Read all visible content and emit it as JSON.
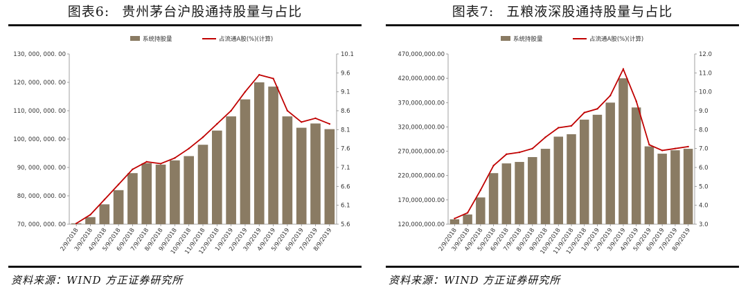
{
  "charts": [
    {
      "id": "left",
      "fig_label": "图表6:",
      "fig_title": "贵州茅台沪股通持股量与占比",
      "source": "资料来源：WIND 方正证券研究所",
      "legend": {
        "bars": "系统持股量",
        "line": "占流通A股(%)(计算)"
      },
      "colors": {
        "bar": "#8a7b63",
        "line": "#c00000"
      }
    },
    {
      "id": "right",
      "fig_label": "图表7:",
      "fig_title": "五粮液深股通持股量与占比",
      "source": "资料来源：WIND 方正证券研究所",
      "legend": {
        "bars": "系统持股量",
        "line": "占流通A股(%)(计算)"
      },
      "colors": {
        "bar": "#8a7b63",
        "line": "#c00000"
      }
    }
  ],
  "chart_data": [
    {
      "type": "bar",
      "combo": "bar+line",
      "x_ticks": [
        "2/9/2018",
        "3/9/2018",
        "4/9/2018",
        "5/9/2018",
        "6/9/2018",
        "7/9/2018",
        "8/9/2018",
        "9/9/2018",
        "10/9/2018",
        "11/9/2018",
        "12/9/2018",
        "1/9/2019",
        "2/9/2019",
        "3/9/2019",
        "4/9/2019",
        "5/9/2019",
        "6/9/2019",
        "7/9/2019",
        "8/9/2019"
      ],
      "y_left": {
        "range": [
          70000000,
          130000000
        ],
        "ticks": [
          "70, 000, 000. 00",
          "80, 000, 000. 00",
          "90, 000, 000. 00",
          "100, 000, 000. 00",
          "110, 000, 000. 00",
          "120, 000, 000. 00",
          "130, 000, 000. 00"
        ]
      },
      "y_right": {
        "range": [
          5.6,
          10.1
        ],
        "ticks": [
          "5.6",
          "6.1",
          "6.6",
          "7.1",
          "7.6",
          "8.1",
          "8.6",
          "9.1",
          "9.6",
          "10.1"
        ]
      },
      "x": [
        "2018-02",
        "2018-03",
        "2018-04",
        "2018-05",
        "2018-06",
        "2018-07",
        "2018-08",
        "2018-09",
        "2018-10",
        "2018-11",
        "2018-12",
        "2019-01",
        "2019-02",
        "2019-03",
        "2019-04",
        "2019-05",
        "2019-06",
        "2019-07",
        "2019-08"
      ],
      "series": [
        {
          "name": "系统持股量",
          "kind": "bar",
          "values": [
            70300000,
            72500000,
            77000000,
            82000000,
            88000000,
            91500000,
            91000000,
            92500000,
            94000000,
            98000000,
            103000000,
            108000000,
            114000000,
            120000000,
            118500000,
            108000000,
            104000000,
            105500000,
            103500000
          ]
        },
        {
          "name": "占流通A股(%)(计算)",
          "kind": "line",
          "values": [
            5.62,
            5.85,
            6.25,
            6.65,
            7.05,
            7.25,
            7.2,
            7.35,
            7.6,
            7.9,
            8.25,
            8.6,
            9.1,
            9.55,
            9.45,
            8.6,
            8.3,
            8.4,
            8.25
          ]
        }
      ]
    },
    {
      "type": "bar",
      "combo": "bar+line",
      "x_ticks": [
        "2/9/2018",
        "3/9/2018",
        "4/9/2018",
        "5/9/2018",
        "6/9/2018",
        "7/9/2018",
        "8/9/2018",
        "9/9/2018",
        "10/9/2018",
        "11/9/2018",
        "12/9/2018",
        "1/9/2019",
        "2/9/2019",
        "3/9/2019",
        "4/9/2019",
        "5/9/2019",
        "6/9/2019",
        "7/9/2019",
        "8/9/2019"
      ],
      "y_left": {
        "range": [
          120000000,
          470000000
        ],
        "ticks": [
          "120,000,000.00",
          "170,000,000.00",
          "220,000,000.00",
          "270,000,000.00",
          "320,000,000.00",
          "370,000,000.00",
          "420,000,000.00",
          "470,000,000.00"
        ]
      },
      "y_right": {
        "range": [
          3.0,
          12.0
        ],
        "ticks": [
          "3.0",
          "4.0",
          "5.0",
          "6.0",
          "7.0",
          "8.0",
          "9.0",
          "10.0",
          "11.0",
          "12.0"
        ]
      },
      "x": [
        "2018-02",
        "2018-03",
        "2018-04",
        "2018-05",
        "2018-06",
        "2018-07",
        "2018-08",
        "2018-09",
        "2018-10",
        "2018-11",
        "2018-12",
        "2019-01",
        "2019-02",
        "2019-03",
        "2019-04",
        "2019-05",
        "2019-06",
        "2019-07",
        "2019-08"
      ],
      "series": [
        {
          "name": "系统持股量",
          "kind": "bar",
          "values": [
            130000000,
            140000000,
            175000000,
            225000000,
            245000000,
            248000000,
            258000000,
            275000000,
            300000000,
            305000000,
            335000000,
            345000000,
            370000000,
            420000000,
            360000000,
            280000000,
            265000000,
            272000000,
            275000000
          ]
        },
        {
          "name": "占流通A股(%)(计算)",
          "kind": "line",
          "values": [
            3.3,
            3.6,
            4.8,
            6.1,
            6.7,
            6.8,
            7.0,
            7.6,
            8.1,
            8.2,
            8.9,
            9.1,
            9.8,
            11.2,
            9.5,
            7.2,
            6.9,
            7.0,
            7.1
          ]
        }
      ]
    }
  ]
}
